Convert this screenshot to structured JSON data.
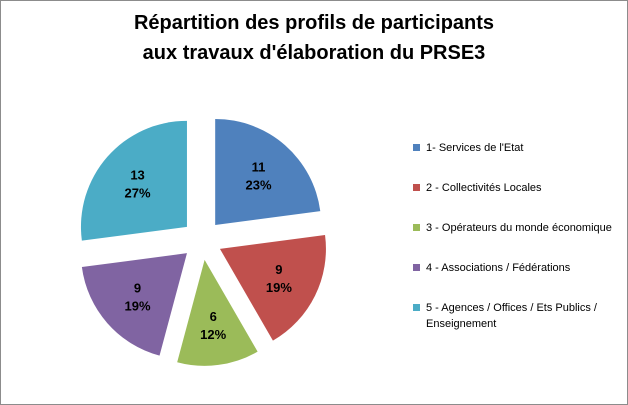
{
  "chart_data": {
    "type": "pie",
    "title_lines": [
      "Répartition des profils de participants",
      "aux travaux d'élaboration du PRSE3"
    ],
    "slices": [
      {
        "name": "1- Services de l'Etat",
        "value": 11,
        "percent_label": "23%",
        "color": "#4f81bd"
      },
      {
        "name": "2 - Collectivités Locales",
        "value": 9,
        "percent_label": "19%",
        "color": "#c0504d"
      },
      {
        "name": "3 - Opérateurs du monde économique",
        "value": 6,
        "percent_label": "12%",
        "color": "#9bbb59"
      },
      {
        "name": "4 - Associations / Fédérations",
        "value": 9,
        "percent_label": "19%",
        "color": "#8064a2"
      },
      {
        "name": "5 - Agences / Offices / Ets Publics / Enseignement",
        "value": 13,
        "percent_label": "27%",
        "color": "#4bacc6"
      }
    ],
    "legend_position": "right",
    "exploded": true
  }
}
